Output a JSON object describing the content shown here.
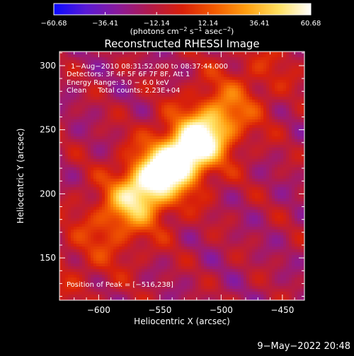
{
  "colorbar": {
    "ticks": [
      -60.68,
      -36.41,
      -12.14,
      12.14,
      36.41,
      60.68
    ],
    "tick_labels": [
      "−60.68",
      "−36.41",
      "−12.14",
      "12.14",
      "36.41",
      "60.68"
    ],
    "unit_prefix": "(photons cm",
    "unit_sup1": "−2",
    "unit_mid": " s",
    "unit_sup2": "−1",
    "unit_mid2": " asec",
    "unit_sup3": "−2",
    "unit_suffix": ")",
    "stops": [
      "#0a0aff",
      "#5a1ad6",
      "#8a1a9a",
      "#b21a4a",
      "#d8200a",
      "#f25a00",
      "#ff9f10",
      "#ffe060",
      "#ffffff"
    ]
  },
  "chart_data": {
    "type": "heatmap",
    "title": "Reconstructed RHESSI Image",
    "xlabel": "Heliocentric X (arcsec)",
    "ylabel": "Heliocentric Y (arcsec)",
    "xlim": [
      -632,
      -432
    ],
    "ylim": [
      117,
      311
    ],
    "x_ticks": [
      -600,
      -550,
      -500,
      -450
    ],
    "x_tick_labels": [
      "−600",
      "−550",
      "−500",
      "−450"
    ],
    "y_ticks": [
      150,
      200,
      250,
      300
    ],
    "y_tick_labels": [
      "150",
      "200",
      "250",
      "300"
    ],
    "value_range": [
      -60.68,
      60.68
    ],
    "peak": {
      "x": -516,
      "y": 238
    },
    "sources": [
      {
        "x": -520,
        "y": 238,
        "peak": 60.68
      },
      {
        "x": -560,
        "y": 208,
        "peak": 52
      }
    ],
    "annotations": [
      "1−Aug−2010 08:31:52.000 to 08:37:44.000",
      "Detectors: 3F 4F 5F 6F 7F 8F, Att 1",
      "Energy Range: 3.0 − 6.0 keV",
      "Clean     Total counts: 2.23E+04",
      "Position of Peak = [−516,238]"
    ]
  },
  "footer": {
    "timestamp": "9−May−2022 20:48"
  }
}
